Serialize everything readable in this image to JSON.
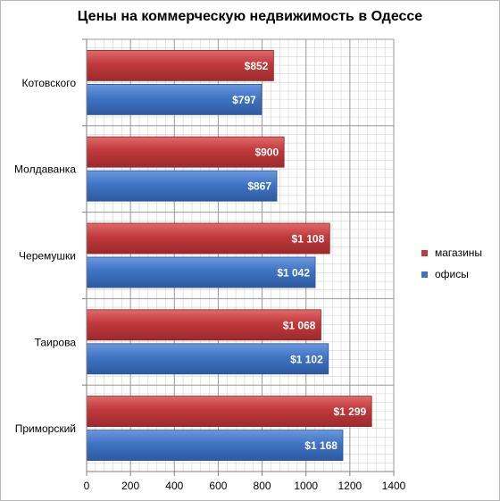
{
  "chart_data": {
    "type": "bar",
    "orientation": "horizontal",
    "title": "Цены на коммерческую недвижимость в Одессе",
    "categories": [
      "Котовского",
      "Молдаванка",
      "Черемушки",
      "Таирова",
      "Приморский"
    ],
    "series": [
      {
        "name": "магазины",
        "color": "#c0393b",
        "values": [
          852,
          900,
          1108,
          1068,
          1299
        ],
        "labels": [
          "$852",
          "$900",
          "$1 108",
          "$1 068",
          "$1 299"
        ]
      },
      {
        "name": "офисы",
        "color": "#3f74c4",
        "values": [
          797,
          867,
          1042,
          1102,
          1168
        ],
        "labels": [
          "$797",
          "$867",
          "$1 042",
          "$1 102",
          "$1 168"
        ]
      }
    ],
    "xlim": [
      0,
      1400
    ],
    "x_ticks": [
      0,
      200,
      400,
      600,
      800,
      1000,
      1200,
      1400
    ],
    "x_tick_labels": [
      "0",
      "200",
      "400",
      "600",
      "800",
      "1000",
      "1200",
      "1400"
    ],
    "grid": true,
    "legend_position": "right"
  }
}
